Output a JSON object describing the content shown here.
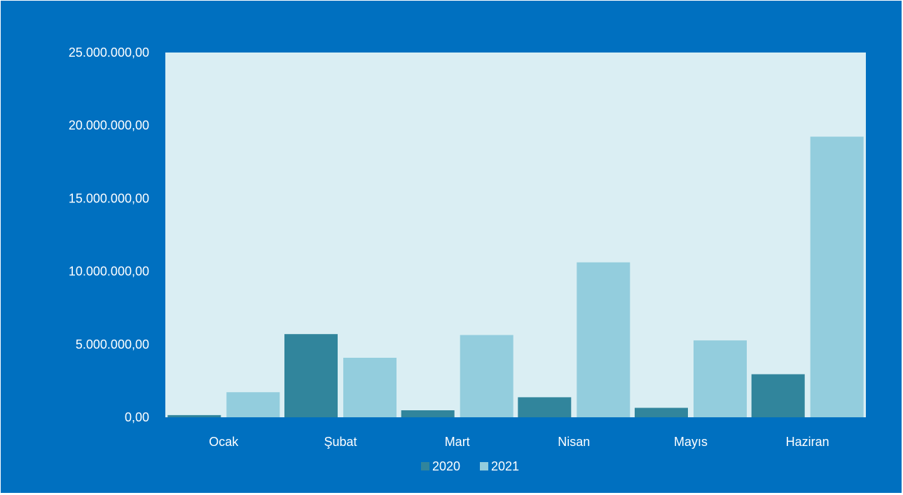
{
  "chart_data": {
    "type": "bar",
    "title": "",
    "xlabel": "",
    "ylabel": "",
    "categories": [
      "Ocak",
      "Şubat",
      "Mart",
      "Nisan",
      "Mayıs",
      "Haziran"
    ],
    "series": [
      {
        "name": "2020",
        "color": "#31859c",
        "values": [
          150000,
          5700000,
          480000,
          1370000,
          650000,
          2950000
        ]
      },
      {
        "name": "2021",
        "color": "#93cddd",
        "values": [
          1720000,
          4080000,
          5640000,
          10620000,
          5270000,
          19230000
        ]
      }
    ],
    "ylim": [
      0,
      25000000
    ],
    "yticks": [
      0,
      5000000,
      10000000,
      15000000,
      20000000,
      25000000
    ],
    "ytick_labels": [
      "0,00",
      "5.000.000,00",
      "10.000.000,00",
      "15.000.000,00",
      "20.000.000,00",
      "25.000.000,00"
    ],
    "grid": false,
    "legend_position": "bottom",
    "colors": {
      "background": "#0070c0",
      "plot_area": "#daeef3",
      "text": "#ffffff"
    }
  }
}
